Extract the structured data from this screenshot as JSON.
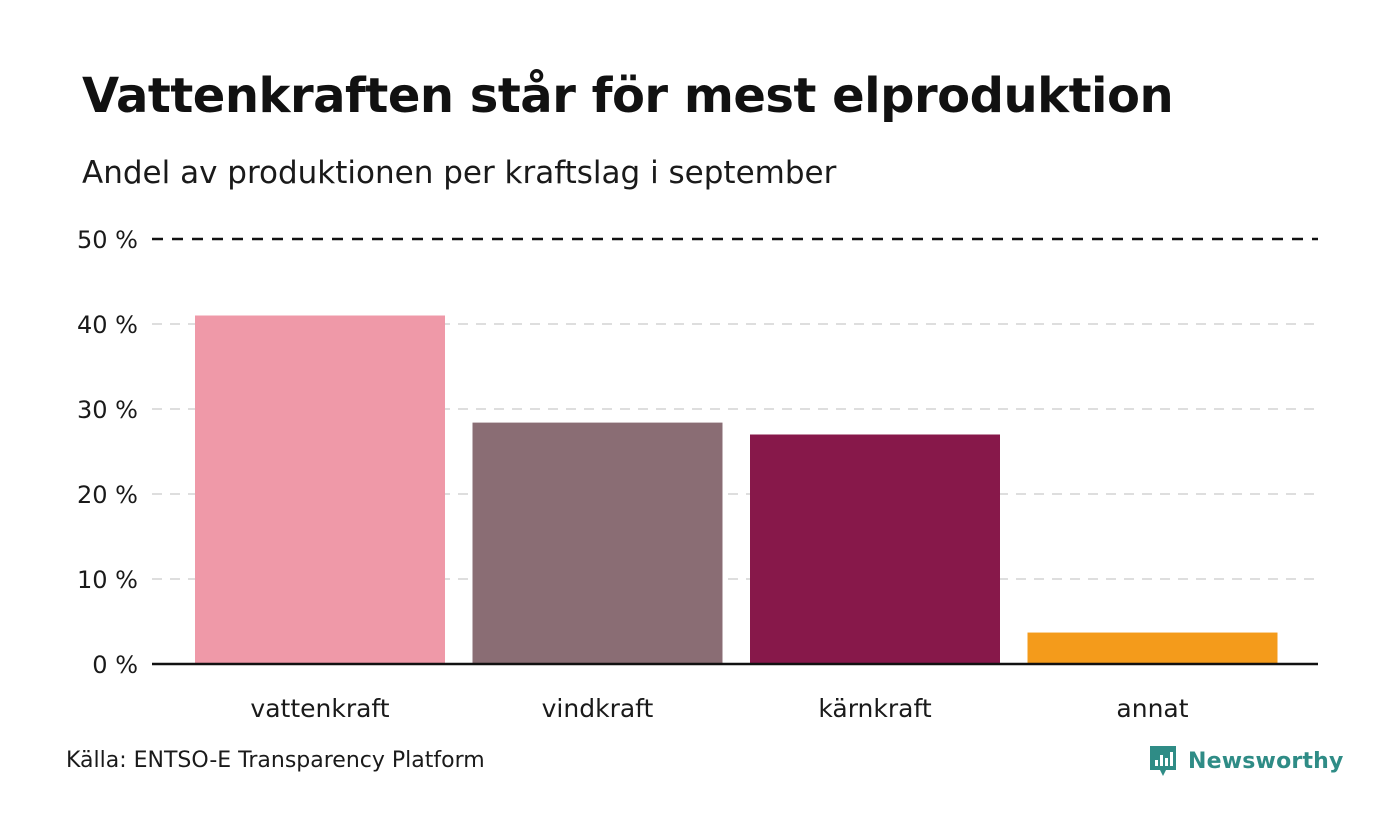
{
  "header": {
    "title": "Vattenkraften står för mest elproduktion",
    "subtitle": "Andel av produktionen per kraftslag i september"
  },
  "footer": {
    "source": "Källa: ENTSO-E Transparency Platform",
    "brand": "Newsworthy",
    "brand_icon": "newsworthy-logo-icon",
    "brand_color": "#2f8c86"
  },
  "chart_data": {
    "type": "bar",
    "title": "Vattenkraften står för mest elproduktion",
    "subtitle": "Andel av produktionen per kraftslag i september",
    "categories": [
      "vattenkraft",
      "vindkraft",
      "kärnkraft",
      "annat"
    ],
    "values": [
      41.0,
      28.4,
      27.0,
      3.7
    ],
    "colors": [
      "#ef99a8",
      "#8a6d74",
      "#87184a",
      "#f49b1b"
    ],
    "ylim": [
      0,
      50
    ],
    "yticks": [
      0,
      10,
      20,
      30,
      40,
      50
    ],
    "ytick_labels": [
      "0 %",
      "10 %",
      "20 %",
      "30 %",
      "40 %",
      "50 %"
    ],
    "grid": true,
    "xlabel": "",
    "ylabel": ""
  }
}
